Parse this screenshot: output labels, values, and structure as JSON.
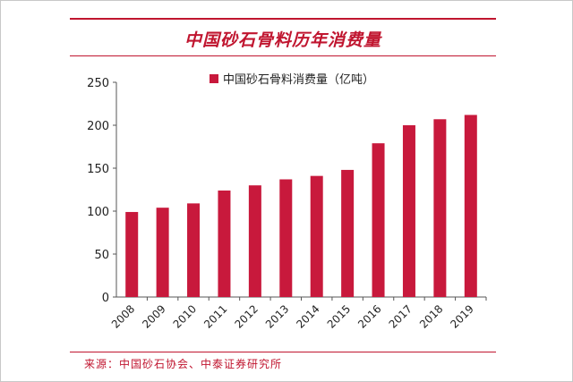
{
  "chart_data": {
    "type": "bar",
    "title": "中国砂石骨料历年消费量",
    "legend": "中国砂石骨料消费量（亿吨）",
    "categories": [
      "2008",
      "2009",
      "2010",
      "2011",
      "2012",
      "2013",
      "2014",
      "2015",
      "2016",
      "2017",
      "2018",
      "2019"
    ],
    "series": [
      {
        "name": "中国砂石骨料消费量（亿吨）",
        "values": [
          99,
          104,
          109,
          124,
          130,
          137,
          141,
          148,
          179,
          200,
          207,
          212
        ]
      }
    ],
    "ylim": [
      0,
      250
    ],
    "yticks": [
      "0",
      "50",
      "100",
      "150",
      "200",
      "250"
    ],
    "grid": false,
    "legend_position": "top-center",
    "colors": {
      "bar": "#c8193c",
      "accent": "#c0152f"
    }
  },
  "source": "来源：中国砂石协会、中泰证券研究所"
}
